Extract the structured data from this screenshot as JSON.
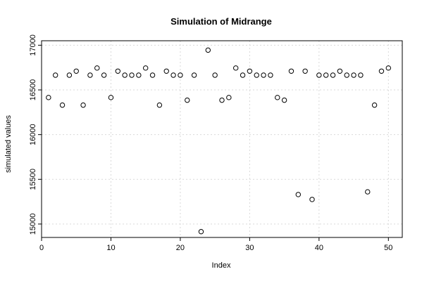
{
  "chart_data": {
    "type": "scatter",
    "title": "Simulation of Midrange",
    "xlabel": "Index",
    "ylabel": "simulated values",
    "xlim": [
      0,
      52
    ],
    "ylim": [
      14850,
      17050
    ],
    "x_ticks": [
      0,
      10,
      20,
      30,
      40,
      50
    ],
    "y_ticks": [
      15000,
      15500,
      16000,
      16500,
      17000
    ],
    "x_tick_labels": [
      "0",
      "10",
      "20",
      "30",
      "40",
      "50"
    ],
    "y_tick_labels": [
      "15000",
      "15500",
      "16000",
      "16500",
      "17000"
    ],
    "grid": true,
    "x": [
      1,
      2,
      3,
      4,
      5,
      6,
      7,
      8,
      9,
      10,
      11,
      12,
      13,
      14,
      15,
      16,
      17,
      18,
      19,
      20,
      21,
      22,
      23,
      24,
      25,
      26,
      27,
      28,
      29,
      30,
      31,
      32,
      33,
      34,
      35,
      36,
      37,
      38,
      39,
      40,
      41,
      42,
      43,
      44,
      45,
      46,
      47,
      48,
      49,
      50
    ],
    "y": [
      16415,
      16665,
      16330,
      16665,
      16710,
      16330,
      16665,
      16745,
      16665,
      16415,
      16710,
      16665,
      16665,
      16665,
      16745,
      16665,
      16330,
      16710,
      16665,
      16665,
      16385,
      16665,
      14915,
      16945,
      16665,
      16385,
      16415,
      16745,
      16665,
      16710,
      16665,
      16665,
      16665,
      16415,
      16385,
      16710,
      15330,
      16710,
      15275,
      16665,
      16665,
      16665,
      16710,
      16665,
      16665,
      16665,
      15360,
      16330,
      16710,
      16745
    ]
  }
}
